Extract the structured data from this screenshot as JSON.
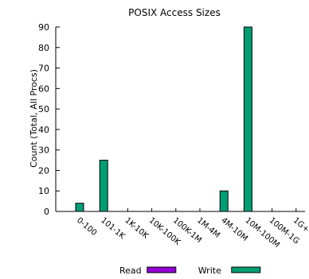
{
  "chart_data": {
    "type": "bar",
    "title": "POSIX Access Sizes",
    "xlabel": "",
    "ylabel": "Count (Total, All Procs)",
    "ylim": [
      0,
      90
    ],
    "yticks": [
      0,
      10,
      20,
      30,
      40,
      50,
      60,
      70,
      80,
      90
    ],
    "categories": [
      "0-100",
      "101-1K",
      "1K-10K",
      "10K-100K",
      "100K-1M",
      "1M-4M",
      "4M-10M",
      "10M-100M",
      "100M-1G",
      "1G+"
    ],
    "series": [
      {
        "name": "Read",
        "color": "#9400d3",
        "values": [
          0,
          0,
          0,
          0,
          0,
          0,
          0,
          0,
          0,
          0
        ]
      },
      {
        "name": "Write",
        "color": "#009e73",
        "values": [
          4,
          25,
          0,
          0,
          0,
          0,
          10,
          90,
          0,
          0
        ]
      }
    ],
    "grid": false,
    "legend_position": "bottom"
  }
}
